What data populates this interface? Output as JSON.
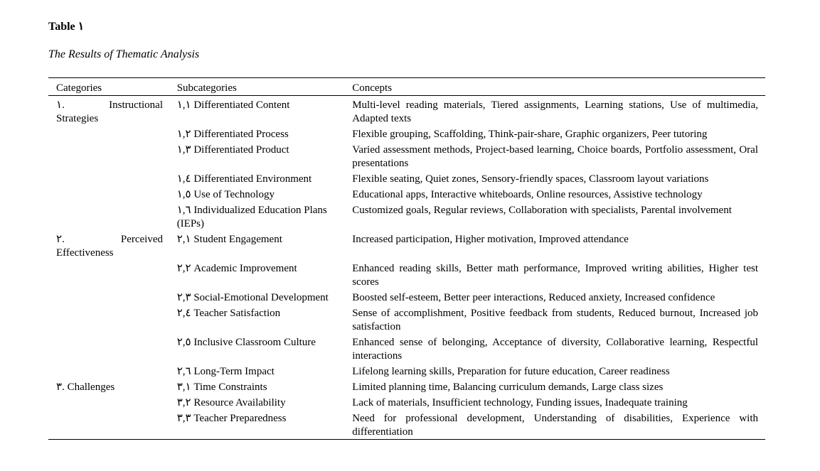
{
  "document": {
    "title": "Table ١",
    "caption": "The Results of Thematic Analysis"
  },
  "table": {
    "headers": [
      "Categories",
      "Subcategories",
      "Concepts"
    ],
    "rows": [
      {
        "category": "١.           Instructional Strategies",
        "subcategory": "١,١ Differentiated Content",
        "concepts": "Multi-level reading materials, Tiered assignments, Learning stations, Use of multimedia, Adapted texts"
      },
      {
        "category": "",
        "subcategory": "١,٢ Differentiated Process",
        "concepts": "Flexible grouping, Scaffolding, Think-pair-share, Graphic organizers, Peer tutoring"
      },
      {
        "category": "",
        "subcategory": "١,٣ Differentiated Product",
        "concepts": "Varied assessment methods, Project-based learning, Choice boards, Portfolio assessment, Oral presentations"
      },
      {
        "category": "",
        "subcategory": "١,٤ Differentiated Environment",
        "concepts": "Flexible seating, Quiet zones, Sensory-friendly spaces, Classroom layout variations"
      },
      {
        "category": "",
        "subcategory": "١,٥ Use of Technology",
        "concepts": "Educational apps, Interactive whiteboards, Online resources, Assistive technology"
      },
      {
        "category": "",
        "subcategory": "١,٦ Individualized Education Plans (IEPs)",
        "concepts": "Customized goals, Regular reviews, Collaboration with specialists, Parental involvement"
      },
      {
        "category": "٢.               Perceived Effectiveness",
        "subcategory": "٢,١ Student Engagement",
        "concepts": "Increased participation, Higher motivation, Improved attendance"
      },
      {
        "category": "",
        "subcategory": "٢,٢ Academic Improvement",
        "concepts": "Enhanced reading skills, Better math performance, Improved writing abilities, Higher test scores"
      },
      {
        "category": "",
        "subcategory": "٢,٣ Social-Emotional Development",
        "concepts": "Boosted self-esteem, Better peer interactions, Reduced anxiety, Increased confidence"
      },
      {
        "category": "",
        "subcategory": "٢,٤ Teacher Satisfaction",
        "concepts": "Sense of accomplishment, Positive feedback from students, Reduced burnout, Increased job satisfaction"
      },
      {
        "category": "",
        "subcategory": "٢,٥ Inclusive Classroom Culture",
        "concepts": "Enhanced sense of belonging, Acceptance of diversity, Collaborative learning, Respectful interactions"
      },
      {
        "category": "",
        "subcategory": "٢,٦ Long-Term Impact",
        "concepts": "Lifelong learning skills, Preparation for future education, Career readiness"
      },
      {
        "category": "٣. Challenges",
        "subcategory": "٣,١ Time Constraints",
        "concepts": "Limited planning time, Balancing curriculum demands, Large class sizes"
      },
      {
        "category": "",
        "subcategory": "٣,٢ Resource Availability",
        "concepts": "Lack of materials, Insufficient technology, Funding issues, Inadequate training"
      },
      {
        "category": "",
        "subcategory": "٣,٣ Teacher Preparedness",
        "concepts": "Need for professional development, Understanding of disabilities, Experience with differentiation"
      }
    ]
  }
}
